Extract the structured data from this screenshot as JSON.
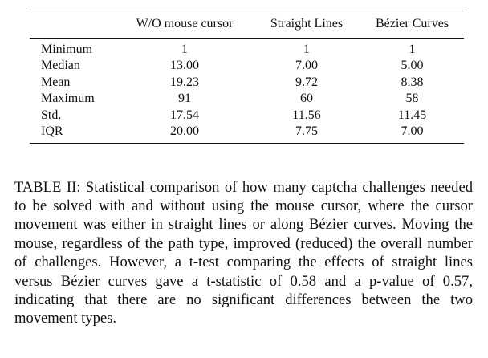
{
  "table": {
    "headers": [
      "",
      "W/O mouse cursor",
      "Straight Lines",
      "Bézier Curves"
    ],
    "rows": [
      {
        "label": "Minimum",
        "values": [
          "1",
          "1",
          "1"
        ]
      },
      {
        "label": "Median",
        "values": [
          "13.00",
          "7.00",
          "5.00"
        ]
      },
      {
        "label": "Mean",
        "values": [
          "19.23",
          "9.72",
          "8.38"
        ]
      },
      {
        "label": "Maximum",
        "values": [
          "91",
          "60",
          "58"
        ]
      },
      {
        "label": "Std.",
        "values": [
          "17.54",
          "11.56",
          "11.45"
        ]
      },
      {
        "label": "IQR",
        "values": [
          "20.00",
          "7.75",
          "7.00"
        ]
      }
    ]
  },
  "caption": {
    "text": "TABLE II: Statistical comparison of how many captcha chal­lenges needed to be solved with and without using the mouse cursor, where the cursor movement was either in straight lines or along Bézier curves. Moving the mouse, regardless of the path type, improved (reduced) the overall number of challenges. However, a t-test comparing the effects of straight lines versus Bézier curves gave a t-statistic of 0.58 and a p-value of 0.57, indicating that there are no significant differences between the two movement types."
  }
}
